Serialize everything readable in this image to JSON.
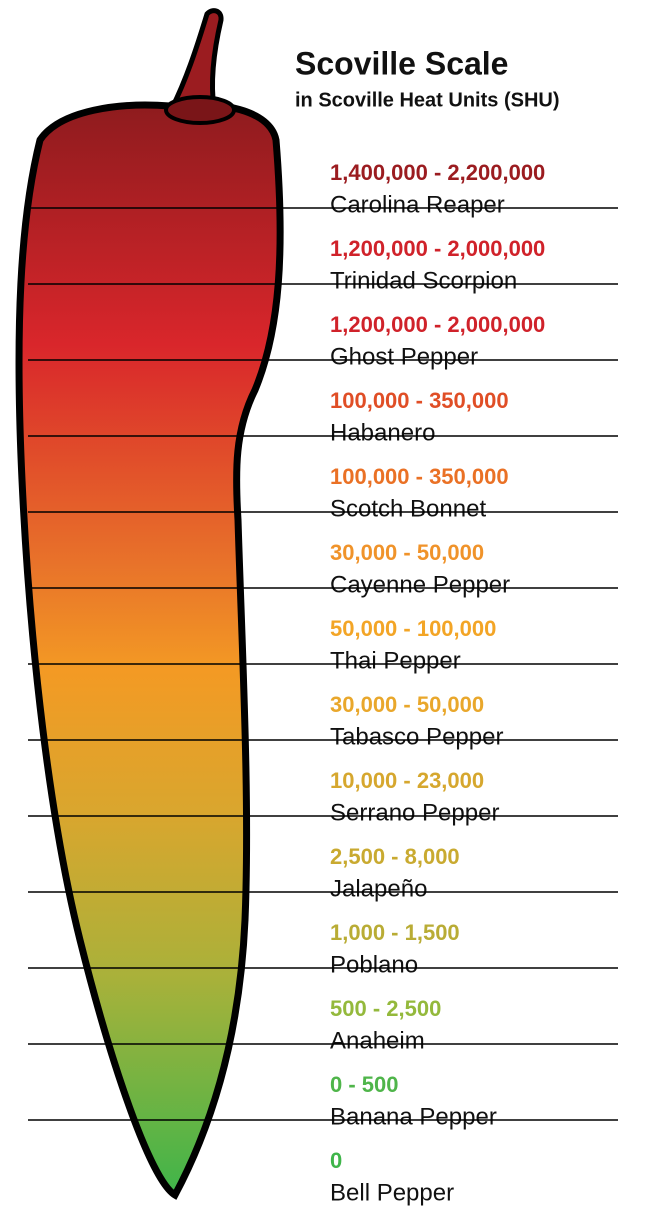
{
  "header": {
    "title": "Scoville Scale",
    "subtitle": "in Scoville Heat Units (SHU)"
  },
  "items": [
    {
      "range": "1,400,000 - 2,200,000",
      "name": "Carolina Reaper",
      "color": "#9b1c20"
    },
    {
      "range": "1,200,000 - 2,000,000",
      "name": "Trinidad Scorpion",
      "color": "#d0222a"
    },
    {
      "range": "1,200,000 - 2,000,000",
      "name": "Ghost Pepper",
      "color": "#d0222a"
    },
    {
      "range": "100,000 - 350,000",
      "name": "Habanero",
      "color": "#e04e26"
    },
    {
      "range": "100,000 - 350,000",
      "name": "Scotch Bonnet",
      "color": "#ea7125"
    },
    {
      "range": "30,000 - 50,000",
      "name": "Cayenne Pepper",
      "color": "#f0932a"
    },
    {
      "range": "50,000 - 100,000",
      "name": "Thai Pepper",
      "color": "#f3a526"
    },
    {
      "range": "30,000 - 50,000",
      "name": "Tabasco Pepper",
      "color": "#e9a72b"
    },
    {
      "range": "10,000 - 23,000",
      "name": "Serrano Pepper",
      "color": "#d6a72e"
    },
    {
      "range": "2,500 - 8,000",
      "name": "Jalapeño",
      "color": "#c9aa30"
    },
    {
      "range": "1,000 - 1,500",
      "name": "Poblano",
      "color": "#b9ac35"
    },
    {
      "range": "500 - 2,500",
      "name": "Anaheim",
      "color": "#94b93c"
    },
    {
      "range": "0 - 500",
      "name": "Banana Pepper",
      "color": "#4fb54a"
    },
    {
      "range": "0",
      "name": "Bell Pepper",
      "color": "#3fb54a"
    }
  ]
}
